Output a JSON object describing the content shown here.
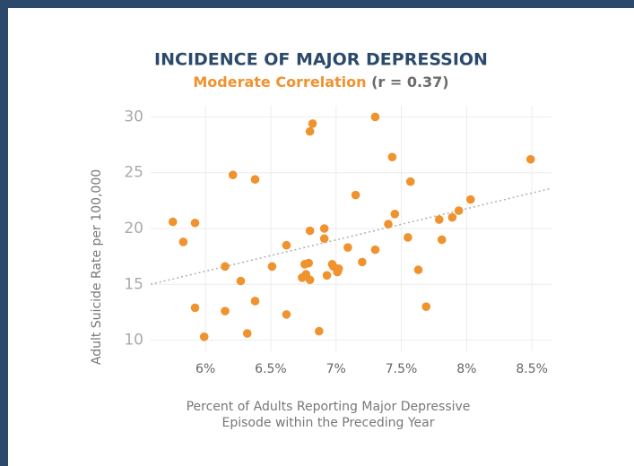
{
  "chart_data": {
    "type": "scatter",
    "title": "INCIDENCE OF MAJOR DEPRESSION",
    "subtitle": "Moderate Correlation",
    "subtitle_note": "(r = 0.37)",
    "y_label": "Adult Suicide Rate  per 100,000",
    "x_label": [
      "Percent of Adults Reporting Major Depressive",
      "Episode within the Preceding Year"
    ],
    "color": "#f0922e",
    "grid": true,
    "xlim": [
      5.58,
      8.65
    ],
    "ylim": [
      9,
      31
    ],
    "xticks": [
      {
        "value": 6,
        "label": "6%"
      },
      {
        "value": 6.5,
        "label": "6.5%"
      },
      {
        "value": 7,
        "label": "7%"
      },
      {
        "value": 7.5,
        "label": "7.5%"
      },
      {
        "value": 8,
        "label": "8%"
      },
      {
        "value": 8.5,
        "label": "8.5%"
      }
    ],
    "yticks": [
      10,
      15,
      20,
      25,
      30
    ],
    "trendline": {
      "x": [
        5.58,
        8.65
      ],
      "y": [
        15,
        23.6
      ]
    },
    "x": [
      5.75,
      5.83,
      5.92,
      5.92,
      5.99,
      6.15,
      6.15,
      6.21,
      6.27,
      6.32,
      6.38,
      6.38,
      6.51,
      6.62,
      6.62,
      6.74,
      6.76,
      6.77,
      6.79,
      6.8,
      6.8,
      6.8,
      6.82,
      6.87,
      6.91,
      6.91,
      6.93,
      6.97,
      6.98,
      7.02,
      7.01,
      7.09,
      7.15,
      7.2,
      7.3,
      7.3,
      7.4,
      7.43,
      7.45,
      7.55,
      7.57,
      7.63,
      7.69,
      7.79,
      7.81,
      7.89,
      7.94,
      8.03,
      8.49
    ],
    "values": [
      20.6,
      18.8,
      20.5,
      12.9,
      10.3,
      16.6,
      12.6,
      24.8,
      15.3,
      10.6,
      13.5,
      24.4,
      16.6,
      12.3,
      18.5,
      15.6,
      16.8,
      15.9,
      16.9,
      15.4,
      19.8,
      28.7,
      29.4,
      10.8,
      20.0,
      19.1,
      15.8,
      16.8,
      16.6,
      16.4,
      16.1,
      18.3,
      23.0,
      17.0,
      18.1,
      30.0,
      20.4,
      26.4,
      21.3,
      19.2,
      24.2,
      16.3,
      13.0,
      20.8,
      19.0,
      21.0,
      21.6,
      22.6,
      26.2
    ]
  }
}
